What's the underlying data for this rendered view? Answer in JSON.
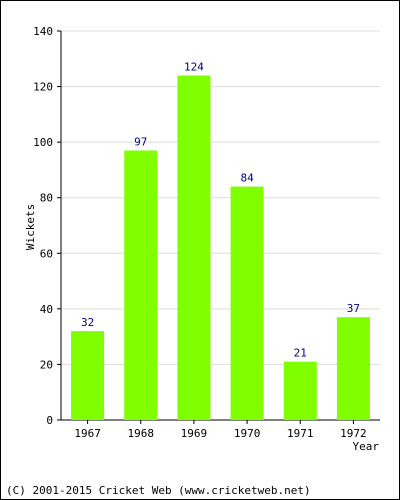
{
  "chart_data": {
    "type": "bar",
    "categories": [
      "1967",
      "1968",
      "1969",
      "1970",
      "1971",
      "1972"
    ],
    "values": [
      32,
      97,
      124,
      84,
      21,
      37
    ],
    "xlabel": "Year",
    "ylabel": "Wickets",
    "ylim": [
      0,
      140
    ],
    "yticks": [
      0,
      20,
      40,
      60,
      80,
      100,
      120,
      140
    ],
    "grid": true,
    "bar_color": "#7fff00",
    "label_color": "#000080"
  },
  "footer": "(C) 2001-2015 Cricket Web (www.cricketweb.net)"
}
